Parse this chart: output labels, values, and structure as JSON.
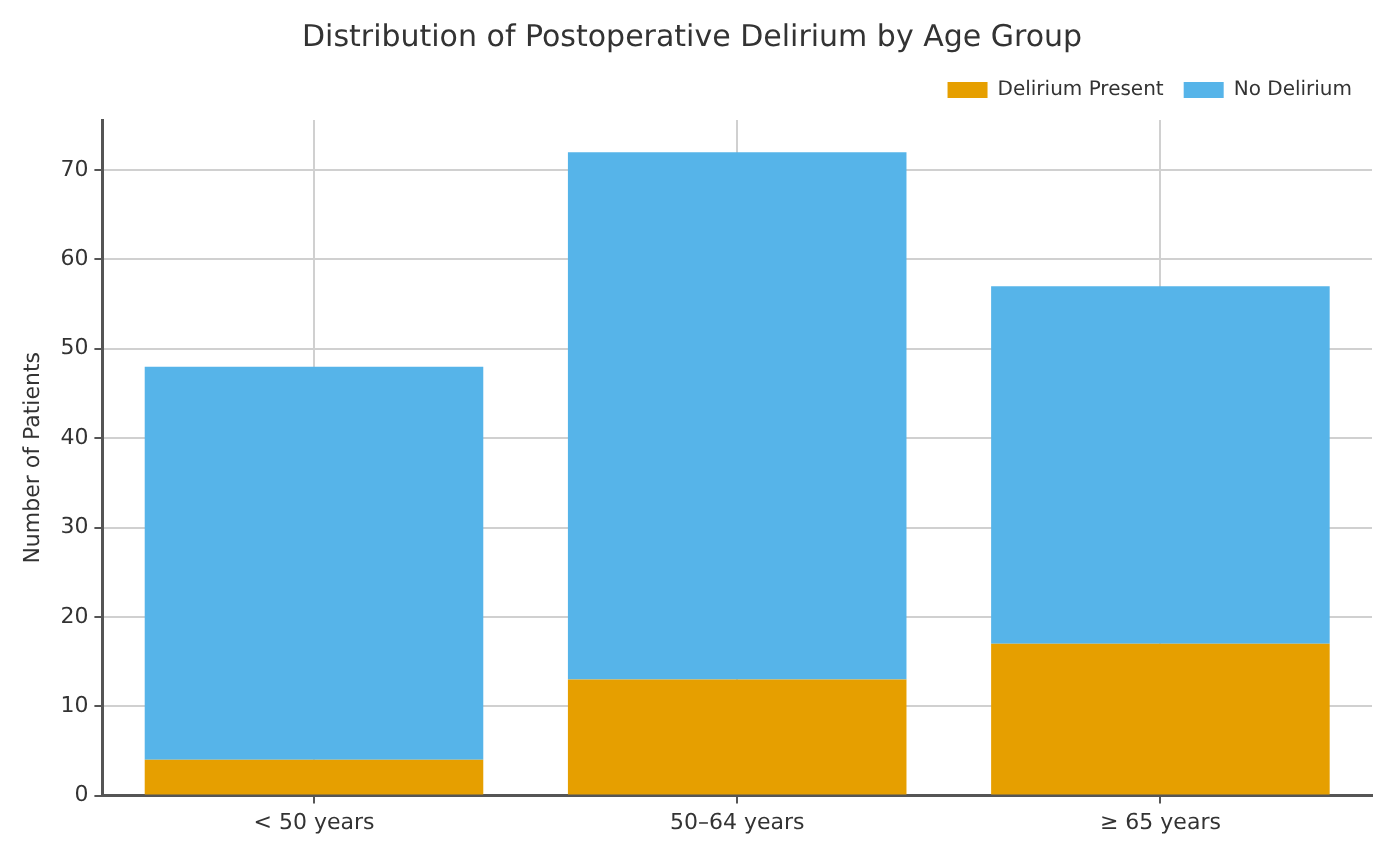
{
  "chart_data": {
    "type": "bar",
    "title": "Distribution of Postoperative Delirium by Age Group",
    "ylabel": "Number of Patients",
    "categories": [
      "< 50 years",
      "50–64 years",
      "≥ 65 years"
    ],
    "series": [
      {
        "name": "Delirium Present",
        "color": "#e69f00",
        "values": [
          4,
          13,
          17
        ]
      },
      {
        "name": "No Delirium",
        "color": "#56b4e9",
        "values": [
          44,
          59,
          40
        ]
      }
    ],
    "stacked": true,
    "ylim": [
      0,
      75.6
    ],
    "yticks": [
      0,
      10,
      20,
      30,
      40,
      50,
      60,
      70
    ],
    "grid": true,
    "legend": "top right"
  }
}
